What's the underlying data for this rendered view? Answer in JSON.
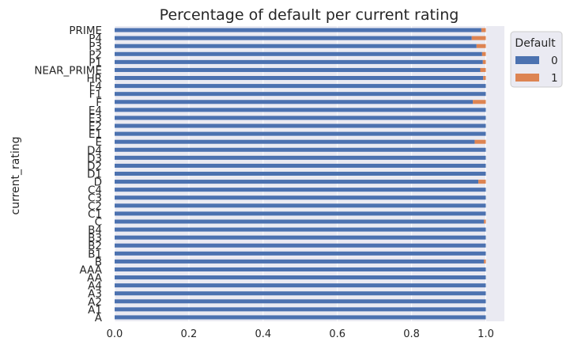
{
  "chart_data": {
    "type": "bar",
    "orientation": "horizontal",
    "stacked": true,
    "title": "Percentage of default per current rating",
    "ylabel": "current_rating",
    "xlabel": "",
    "xlim": [
      0,
      1.05
    ],
    "xticks": [
      "0.0",
      "0.2",
      "0.4",
      "0.6",
      "0.8",
      "1.0"
    ],
    "xtick_values": [
      0,
      0.2,
      0.4,
      0.6,
      0.8,
      1.0
    ],
    "grid": true,
    "legend": {
      "title": "Default",
      "placement": "upper-right-outside",
      "entries": [
        "0",
        "1"
      ]
    },
    "colors": {
      "0": "#4c72b0",
      "1": "#dd8452",
      "background": "#eaeaf2",
      "grid": "#ffffff"
    },
    "categories": [
      "A",
      "A1",
      "A2",
      "A3",
      "A4",
      "AA",
      "AAA",
      "B",
      "B1",
      "B2",
      "B3",
      "B4",
      "C",
      "C1",
      "C2",
      "C3",
      "C4",
      "D",
      "D1",
      "D2",
      "D3",
      "D4",
      "E",
      "E1",
      "E2",
      "E3",
      "E4",
      "F",
      "F1",
      "F4",
      "HR",
      "NEAR_PRIME",
      "P1",
      "P2",
      "P3",
      "P4",
      "PRIME"
    ],
    "series": [
      {
        "name": "0",
        "values": [
          1.0,
          1.0,
          1.0,
          1.0,
          1.0,
          1.0,
          1.0,
          0.995,
          1.0,
          1.0,
          1.0,
          1.0,
          0.995,
          1.0,
          1.0,
          1.0,
          1.0,
          0.98,
          1.0,
          1.0,
          1.0,
          1.0,
          0.97,
          1.0,
          1.0,
          1.0,
          1.0,
          0.965,
          1.0,
          1.0,
          0.993,
          0.985,
          0.992,
          0.99,
          0.975,
          0.962,
          0.988
        ]
      },
      {
        "name": "1",
        "values": [
          0.0,
          0.0,
          0.0,
          0.0,
          0.0,
          0.0,
          0.0,
          0.005,
          0.0,
          0.0,
          0.0,
          0.0,
          0.005,
          0.0,
          0.0,
          0.0,
          0.0,
          0.02,
          0.0,
          0.0,
          0.0,
          0.0,
          0.03,
          0.0,
          0.0,
          0.0,
          0.0,
          0.035,
          0.0,
          0.0,
          0.007,
          0.015,
          0.008,
          0.01,
          0.025,
          0.038,
          0.012
        ]
      }
    ]
  }
}
